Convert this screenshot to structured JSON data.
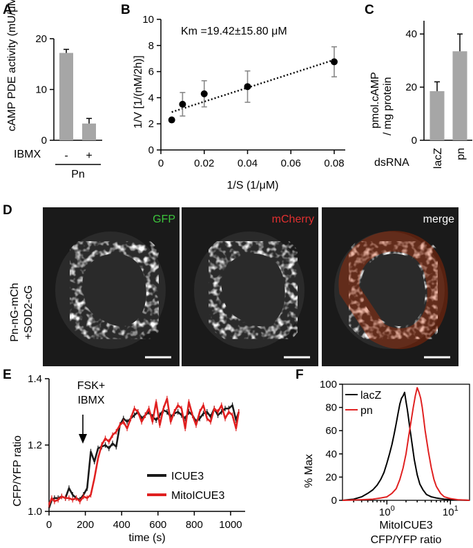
{
  "chart_data": [
    {
      "panel": "A",
      "type": "bar",
      "ylabel": "cAMP PDE activity (mU/μM)",
      "yticks": [
        "0",
        "10",
        "20"
      ],
      "ylim": [
        0,
        20
      ],
      "categories": [
        "-",
        "+"
      ],
      "row_label": "IBMX",
      "group_label": "Pn",
      "values": [
        17.2,
        3.3
      ],
      "errors": [
        0.7,
        1.0
      ]
    },
    {
      "panel": "B",
      "type": "scatter",
      "xlabel": "1/S (1/μM)",
      "ylabel": "1/V [1/(nM/2h)]",
      "xticks": [
        "0",
        "0.02",
        "0.04",
        "0.06",
        "0.08"
      ],
      "yticks": [
        "0",
        "2",
        "4",
        "6",
        "8",
        "10"
      ],
      "xlim": [
        0,
        0.085
      ],
      "ylim": [
        0,
        10
      ],
      "annotation": "Km =19.42±15.80 μM",
      "x": [
        0.005,
        0.01,
        0.02,
        0.04,
        0.08
      ],
      "y": [
        2.3,
        3.5,
        4.3,
        4.85,
        6.75
      ],
      "errors": [
        0,
        0.9,
        1.0,
        1.2,
        1.15
      ],
      "fit": {
        "x": [
          0.005,
          0.08
        ],
        "y": [
          2.9,
          6.9
        ]
      }
    },
    {
      "panel": "C",
      "type": "bar",
      "ylabel": "pmol.cAMP / mg protein",
      "yticks": [
        "0",
        "20",
        "40"
      ],
      "ylim": [
        0,
        45
      ],
      "row_label": "dsRNA",
      "categories": [
        "lacZ",
        "pn"
      ],
      "values": [
        18.5,
        33.5
      ],
      "errors": [
        3.5,
        6.5
      ]
    },
    {
      "panel": "E",
      "type": "line",
      "xlabel": "time (s)",
      "ylabel": "CFP/YFP ratio",
      "xticks": [
        "0",
        "200",
        "400",
        "600",
        "800",
        "1000"
      ],
      "yticks": [
        "1.0",
        "1.2",
        "1.4"
      ],
      "xlim": [
        0,
        1080
      ],
      "ylim": [
        1.0,
        1.4
      ],
      "annotation": "FSK+ IBMX",
      "series": [
        {
          "name": "ICUE3",
          "color": "#1a1a1a",
          "x": [
            0,
            15,
            30,
            50,
            70,
            90,
            110,
            130,
            150,
            170,
            190,
            210,
            230,
            250,
            270,
            290,
            310,
            330,
            350,
            370,
            390,
            410,
            430,
            450,
            470,
            490,
            510,
            530,
            550,
            570,
            590,
            610,
            630,
            650,
            670,
            690,
            710,
            730,
            750,
            770,
            790,
            810,
            830,
            850,
            870,
            890,
            910,
            930,
            950,
            970,
            990,
            1010,
            1030,
            1045
          ],
          "y": [
            1.01,
            1.035,
            1.04,
            1.04,
            1.045,
            1.04,
            1.07,
            1.05,
            1.04,
            1.035,
            1.05,
            1.07,
            1.18,
            1.15,
            1.19,
            1.195,
            1.2,
            1.19,
            1.205,
            1.195,
            1.26,
            1.28,
            1.27,
            1.28,
            1.29,
            1.3,
            1.28,
            1.29,
            1.3,
            1.285,
            1.275,
            1.29,
            1.305,
            1.3,
            1.285,
            1.295,
            1.3,
            1.29,
            1.28,
            1.3,
            1.29,
            1.27,
            1.28,
            1.295,
            1.3,
            1.285,
            1.31,
            1.29,
            1.3,
            1.31,
            1.31,
            1.32,
            1.275,
            1.3
          ]
        },
        {
          "name": "MitoICUE3",
          "color": "#e02020",
          "x": [
            0,
            15,
            30,
            50,
            70,
            90,
            110,
            130,
            150,
            170,
            190,
            210,
            230,
            250,
            270,
            290,
            310,
            330,
            350,
            370,
            390,
            410,
            430,
            450,
            470,
            490,
            510,
            530,
            550,
            570,
            590,
            610,
            630,
            650,
            670,
            690,
            710,
            730,
            750,
            770,
            790,
            810,
            830,
            850,
            870,
            890,
            910,
            930,
            950,
            970,
            990,
            1010,
            1030,
            1045
          ],
          "y": [
            1.02,
            1.04,
            1.03,
            1.035,
            1.045,
            1.04,
            1.04,
            1.035,
            1.04,
            1.03,
            1.045,
            1.04,
            1.05,
            1.1,
            1.16,
            1.2,
            1.22,
            1.21,
            1.23,
            1.24,
            1.26,
            1.27,
            1.25,
            1.28,
            1.31,
            1.3,
            1.27,
            1.29,
            1.31,
            1.27,
            1.33,
            1.26,
            1.31,
            1.34,
            1.27,
            1.3,
            1.32,
            1.31,
            1.25,
            1.33,
            1.29,
            1.26,
            1.3,
            1.32,
            1.28,
            1.27,
            1.31,
            1.3,
            1.32,
            1.28,
            1.3,
            1.29,
            1.25,
            1.3
          ]
        }
      ]
    },
    {
      "panel": "F",
      "type": "line",
      "xlabel": "MitoICUE3 CFP/YFP ratio",
      "ylabel": "% Max",
      "xscale": "log",
      "xticks": [
        "10^0",
        "10^1"
      ],
      "yticks": [
        "0",
        "20",
        "40",
        "60",
        "80",
        "100"
      ],
      "xlim": [
        0.2,
        20
      ],
      "ylim": [
        0,
        100
      ],
      "series": [
        {
          "name": "lacZ",
          "color": "#000000",
          "x": [
            0.2,
            0.3,
            0.4,
            0.5,
            0.6,
            0.7,
            0.8,
            0.9,
            1.0,
            1.1,
            1.2,
            1.3,
            1.4,
            1.5,
            1.6,
            1.7,
            1.8,
            1.9,
            2.0,
            2.1,
            2.2,
            2.3,
            2.5,
            2.7,
            3.0,
            3.3,
            3.7,
            4.2,
            5.0,
            6.0,
            8.0,
            11,
            15,
            20
          ],
          "y": [
            0,
            1,
            3,
            6,
            9,
            13,
            18,
            24,
            32,
            40,
            48,
            57,
            66,
            75,
            83,
            88,
            90,
            93,
            85,
            78,
            70,
            62,
            48,
            35,
            22,
            14,
            9,
            5,
            3,
            2,
            1,
            0.5,
            0.2,
            0
          ]
        },
        {
          "name": "pn",
          "color": "#e02020",
          "x": [
            0.2,
            0.4,
            0.6,
            0.8,
            1.0,
            1.2,
            1.4,
            1.6,
            1.8,
            2.0,
            2.2,
            2.4,
            2.6,
            2.8,
            3.0,
            3.2,
            3.4,
            3.6,
            3.8,
            4.0,
            4.5,
            5.0,
            5.5,
            6.0,
            7.0,
            8.0,
            10,
            13,
            17,
            20
          ],
          "y": [
            0,
            0.5,
            1,
            2,
            3,
            6,
            10,
            18,
            28,
            40,
            55,
            68,
            80,
            90,
            97,
            93,
            88,
            80,
            70,
            60,
            42,
            28,
            18,
            12,
            6,
            3,
            1.5,
            0.5,
            0.2,
            0
          ]
        }
      ]
    }
  ],
  "panels": {
    "A": {
      "letter": "A",
      "pn": "Pn"
    },
    "B": {
      "letter": "B"
    },
    "C": {
      "letter": "C"
    },
    "D": {
      "letter": "D",
      "side_label_1": "Pn-nG-mCh",
      "side_label_2": "+SOD2-cG",
      "channels": [
        "GFP",
        "mCherry",
        "merge"
      ],
      "channel_colors": [
        "#3cc43c",
        "#e23030",
        "#ffffff"
      ]
    },
    "E": {
      "letter": "E",
      "annot_1": "FSK+",
      "annot_2": "IBMX"
    },
    "F": {
      "letter": "F",
      "xlabel_1": "MitoICUE3",
      "xlabel_2": "CFP/YFP ratio"
    }
  }
}
